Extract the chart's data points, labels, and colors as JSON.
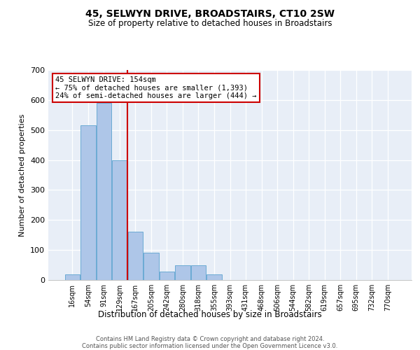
{
  "title": "45, SELWYN DRIVE, BROADSTAIRS, CT10 2SW",
  "subtitle": "Size of property relative to detached houses in Broadstairs",
  "xlabel": "Distribution of detached houses by size in Broadstairs",
  "ylabel": "Number of detached properties",
  "bar_color": "#aec6e8",
  "bar_edge_color": "#6baad4",
  "categories": [
    "16sqm",
    "54sqm",
    "91sqm",
    "129sqm",
    "167sqm",
    "205sqm",
    "242sqm",
    "280sqm",
    "318sqm",
    "355sqm",
    "393sqm",
    "431sqm",
    "468sqm",
    "506sqm",
    "544sqm",
    "582sqm",
    "619sqm",
    "657sqm",
    "695sqm",
    "732sqm",
    "770sqm"
  ],
  "values": [
    18,
    515,
    590,
    400,
    160,
    90,
    28,
    50,
    48,
    18,
    0,
    0,
    0,
    0,
    0,
    0,
    0,
    0,
    0,
    0,
    0
  ],
  "ylim": [
    0,
    700
  ],
  "yticks": [
    0,
    100,
    200,
    300,
    400,
    500,
    600,
    700
  ],
  "vline_x": 3.5,
  "vline_color": "#cc0000",
  "bg_color": "#e8eef7",
  "annotation_line1": "45 SELWYN DRIVE: 154sqm",
  "annotation_line2": "← 75% of detached houses are smaller (1,393)",
  "annotation_line3": "24% of semi-detached houses are larger (444) →",
  "annotation_box_color": "#ffffff",
  "annotation_box_edge_color": "#cc0000",
  "footer_line1": "Contains HM Land Registry data © Crown copyright and database right 2024.",
  "footer_line2": "Contains public sector information licensed under the Open Government Licence v3.0."
}
